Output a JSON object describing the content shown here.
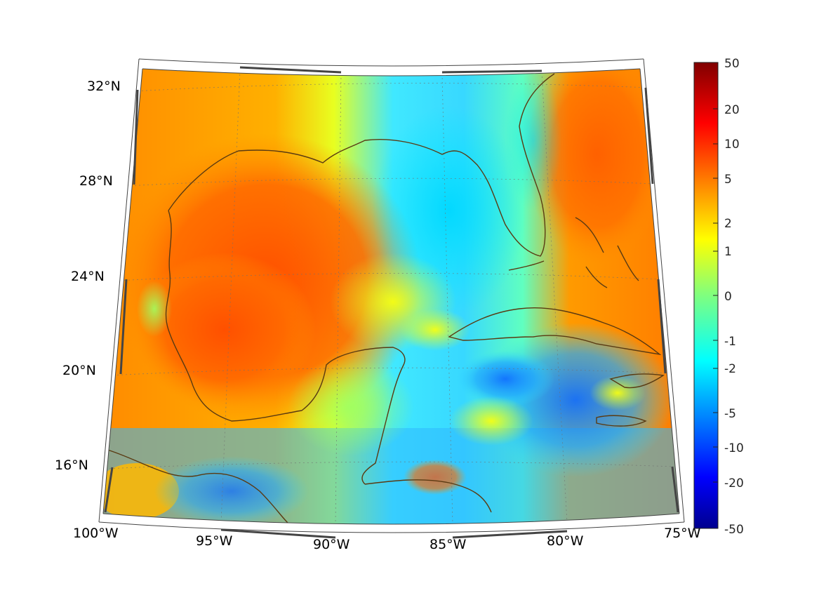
{
  "map": {
    "projection": "lambert-conformal",
    "lon_ticks": [
      "100°W",
      "95°W",
      "90°W",
      "85°W",
      "80°W",
      "75°W"
    ],
    "lat_ticks": [
      "16°N",
      "20°N",
      "24°N",
      "28°N",
      "32°N"
    ],
    "lon_range": [
      -100,
      -75
    ],
    "lat_range": [
      14,
      33
    ],
    "grid": true,
    "coastline_color": "#5a3a12",
    "field_style": "jet colormap on a symmetric log-like scale"
  },
  "colorbar": {
    "ticks": [
      "50",
      "20",
      "10",
      "5",
      "2",
      "1",
      "0",
      "-1",
      "-2",
      "-5",
      "-10",
      "-20",
      "-50"
    ],
    "colormap": "jet",
    "top_color": "#800000",
    "bottom_color": "#00008f"
  }
}
